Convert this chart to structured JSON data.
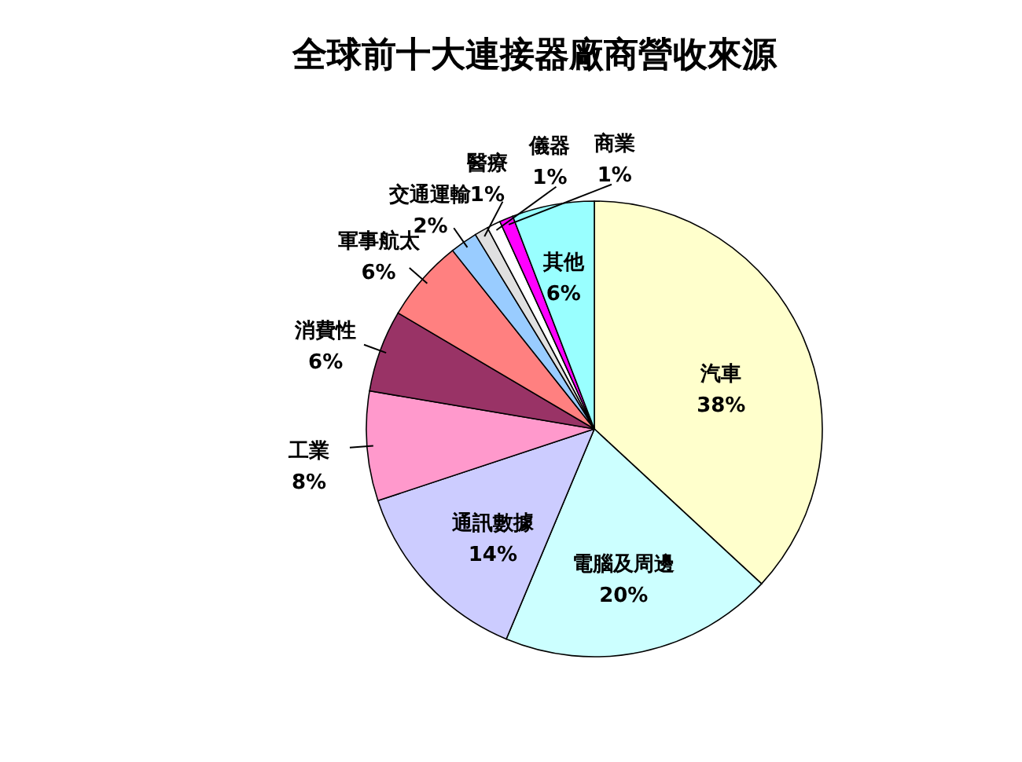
{
  "chart_data": {
    "type": "pie",
    "title": "全球前十大連接器廠商營收來源",
    "categories": [
      "汽車",
      "電腦及周邊",
      "通訊數據",
      "工業",
      "消費性",
      "軍事航太",
      "交通運輸",
      "醫療",
      "儀器",
      "商業",
      "其他"
    ],
    "values": [
      38,
      20,
      14,
      8,
      6,
      6,
      2,
      1,
      1,
      1,
      6
    ],
    "value_labels": [
      "38%",
      "20%",
      "14%",
      "8%",
      "6%",
      "6%",
      "2%",
      "1%",
      "1%",
      "1%",
      "6%"
    ],
    "colors": [
      "#ffffcc",
      "#ccffff",
      "#ccccff",
      "#ff99cc",
      "#993366",
      "#ff8080",
      "#99ccff",
      "#e0e0e0",
      "#ffffff",
      "#ff00ff",
      "#99ffff"
    ],
    "legend": false
  }
}
